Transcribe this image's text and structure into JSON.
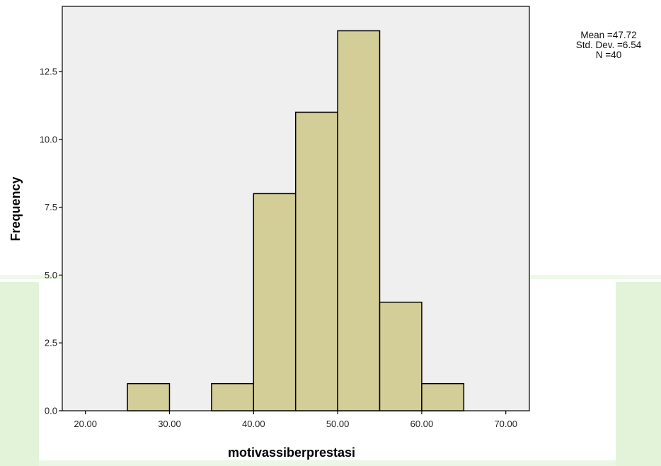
{
  "chart_data": {
    "type": "histogram",
    "bins": [
      {
        "from": 25,
        "to": 30,
        "count": 1
      },
      {
        "from": 30,
        "to": 35,
        "count": 0
      },
      {
        "from": 35,
        "to": 40,
        "count": 1
      },
      {
        "from": 40,
        "to": 45,
        "count": 8
      },
      {
        "from": 45,
        "to": 50,
        "count": 11
      },
      {
        "from": 50,
        "to": 55,
        "count": 14
      },
      {
        "from": 55,
        "to": 60,
        "count": 4
      },
      {
        "from": 60,
        "to": 65,
        "count": 1
      }
    ],
    "xlabel": "motivassiberprestasi",
    "ylabel": "Frequency",
    "xlim": [
      17.25,
      72.8
    ],
    "ylim": [
      0,
      14.9
    ],
    "x_ticks": [
      20,
      30,
      40,
      50,
      60,
      70
    ],
    "x_tick_labels": [
      "20.00",
      "30.00",
      "40.00",
      "50.00",
      "60.00",
      "70.00"
    ],
    "y_ticks": [
      0,
      2.5,
      5,
      7.5,
      10,
      12.5
    ],
    "y_tick_labels": [
      "0.0",
      "2.5",
      "5.0",
      "7.5",
      "10.0",
      "12.5"
    ],
    "grid": false,
    "colors": {
      "bar_fill": "#d3cd98",
      "bar_stroke": "#000000",
      "plot_background": "#efefef"
    },
    "stats": {
      "mean": "Mean =47.72",
      "std_dev": "Std. Dev. =6.54",
      "n": "N =40"
    }
  }
}
